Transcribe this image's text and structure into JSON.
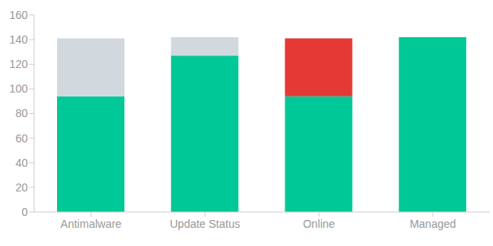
{
  "chart_data": {
    "type": "bar",
    "stacked": true,
    "grid": false,
    "categories": [
      "Antimalware",
      "Update Status",
      "Online",
      "Managed"
    ],
    "series": [
      {
        "color": "#00c896",
        "values": [
          94,
          127,
          94,
          142
        ]
      },
      {
        "colors": [
          "#d1d8de",
          "#d1d8de",
          "#e53935",
          "#d1d8de"
        ],
        "values": [
          47,
          15,
          47,
          null
        ]
      }
    ],
    "ylim": [
      0,
      160
    ],
    "yticks": [
      0,
      20,
      40,
      60,
      80,
      100,
      120,
      140,
      160
    ]
  }
}
